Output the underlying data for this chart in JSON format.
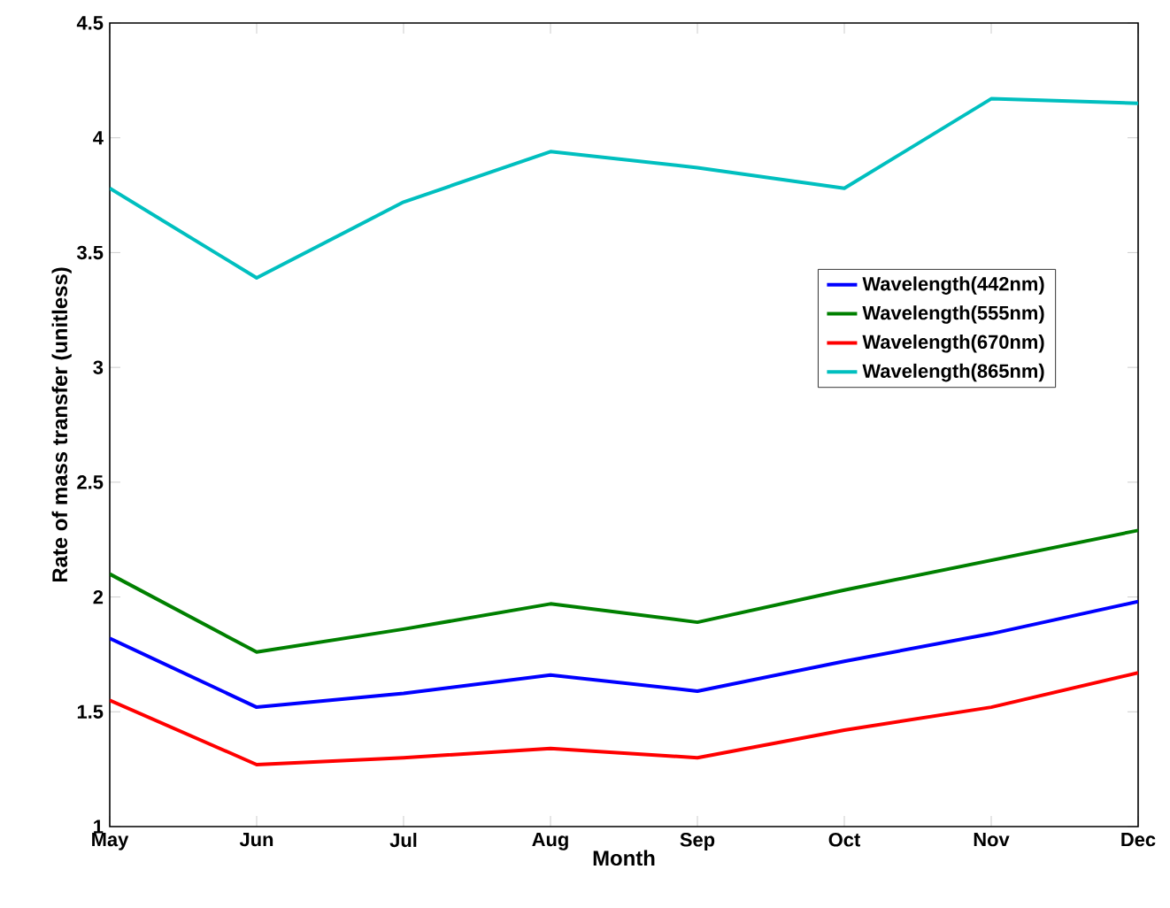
{
  "chart_data": {
    "type": "line",
    "xlabel": "Month",
    "ylabel": "Rate of mass transfer (unitless)",
    "categories": [
      "May",
      "Jun",
      "Jul",
      "Aug",
      "Sep",
      "Oct",
      "Nov",
      "Dec"
    ],
    "series": [
      {
        "name": "Wavelength(442nm)",
        "color": "#0000ff",
        "values": [
          1.82,
          1.52,
          1.58,
          1.66,
          1.59,
          1.72,
          1.84,
          1.98
        ]
      },
      {
        "name": "Wavelength(555nm)",
        "color": "#008000",
        "values": [
          2.1,
          1.76,
          1.86,
          1.97,
          1.89,
          2.03,
          2.16,
          2.29
        ]
      },
      {
        "name": "Wavelength(670nm)",
        "color": "#ff0000",
        "values": [
          1.55,
          1.27,
          1.3,
          1.34,
          1.3,
          1.42,
          1.52,
          1.67
        ]
      },
      {
        "name": "Wavelength(865nm)",
        "color": "#00bfbf",
        "values": [
          3.78,
          3.39,
          3.72,
          3.94,
          3.87,
          3.78,
          4.17,
          4.15
        ]
      }
    ],
    "ylim": [
      1,
      4.5
    ],
    "yticks": [
      1,
      1.5,
      2,
      2.5,
      3,
      3.5,
      4,
      4.5
    ],
    "legend": "right",
    "grid": false,
    "marker": "none",
    "line_style": "solid"
  }
}
